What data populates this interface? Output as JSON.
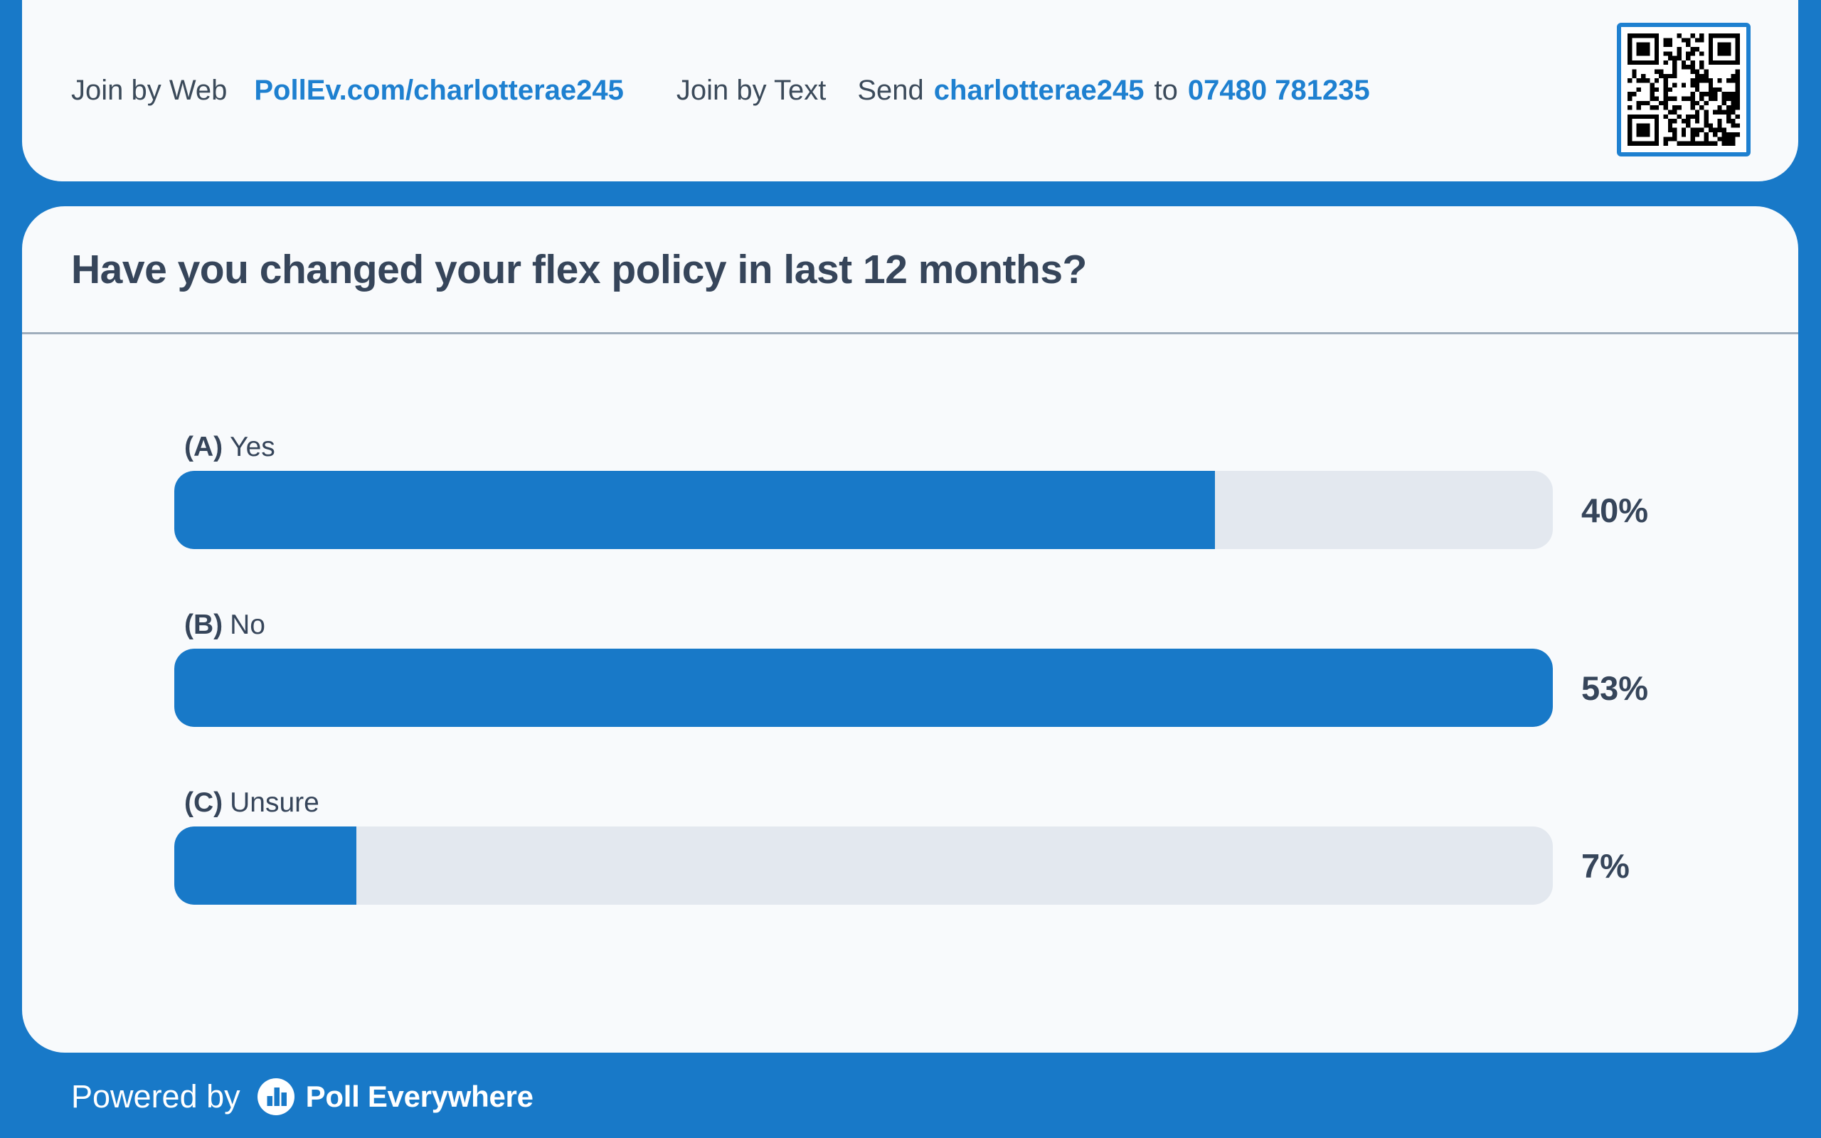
{
  "header": {
    "join_web_label": "Join by Web",
    "join_web_url": "PollEv.com/charlotterae245",
    "join_text_label": "Join by Text",
    "send_word": "Send",
    "send_username": "charlotterae245",
    "to_word": "to",
    "send_number": "07480 781235"
  },
  "poll": {
    "question": "Have you changed your flex policy in last 12 months?"
  },
  "chart_data": {
    "type": "bar",
    "orientation": "horizontal",
    "title": "Have you changed your flex policy in last 12 months?",
    "categories": [
      "Yes",
      "No",
      "Unsure"
    ],
    "option_keys": [
      "(A)",
      "(B)",
      "(C)"
    ],
    "values": [
      40,
      53,
      7
    ],
    "unit": "%",
    "value_labels": [
      "40%",
      "53%",
      "7%"
    ],
    "scale_max": 53,
    "legend": "none",
    "grid": "off",
    "bar_color": "#1879c8",
    "track_color": "#e3e8ef"
  },
  "footer": {
    "powered_by": "Powered by",
    "brand": "Poll Everywhere"
  },
  "colors": {
    "frame_blue": "#1879c8",
    "card_background": "#f8fafc",
    "link_blue": "#1e80d0",
    "text_dark": "#36455a",
    "divider_gray": "#9fadbc"
  },
  "icons": {
    "qr_code": "qr-code",
    "logo": "poll-everywhere-logo"
  }
}
